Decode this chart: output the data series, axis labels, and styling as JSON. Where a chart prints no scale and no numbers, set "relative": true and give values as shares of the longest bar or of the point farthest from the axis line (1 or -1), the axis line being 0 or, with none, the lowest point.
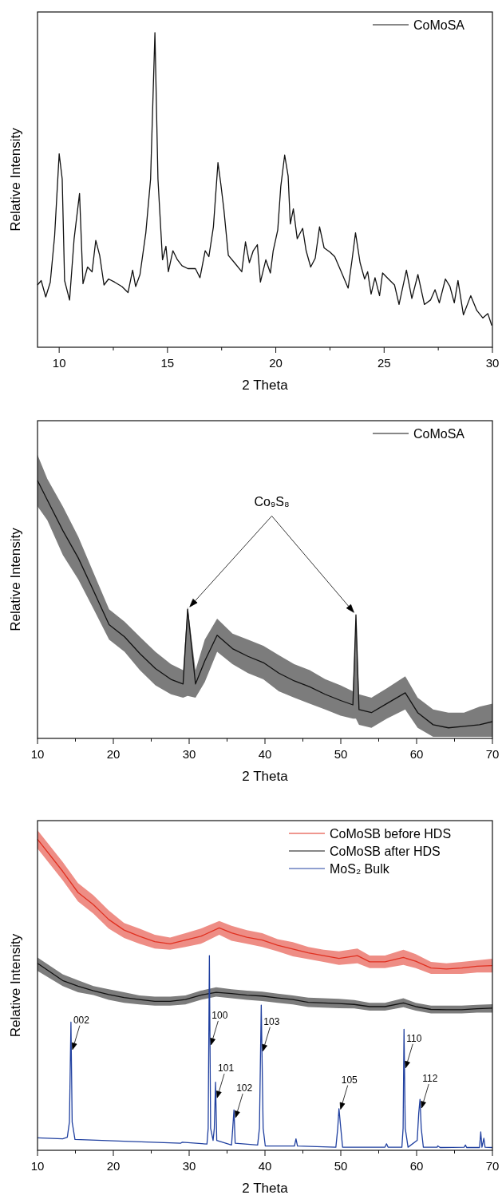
{
  "chart_data": [
    {
      "type": "line",
      "relative": true,
      "xlabel": "2 Theta",
      "ylabel": "Relative Intensity",
      "xlim": [
        9,
        30
      ],
      "xticks": [
        10,
        {
          "value": 12.5,
          "label": null
        },
        15,
        {
          "value": 17.5,
          "label": null
        },
        20,
        {
          "value": 22.5,
          "label": null
        },
        25,
        {
          "value": 27.5,
          "label": null
        },
        30
      ],
      "tick_labels": "x",
      "grid": false,
      "legend": "top right",
      "series": [
        {
          "name": "CoMoSA",
          "color": "#111111",
          "x": [
            9.0,
            9.17,
            9.38,
            9.59,
            9.79,
            10.0,
            10.14,
            10.25,
            10.48,
            10.69,
            10.94,
            11.1,
            11.31,
            11.52,
            11.69,
            11.87,
            12.07,
            12.28,
            12.56,
            12.9,
            13.18,
            13.39,
            13.53,
            13.73,
            14.0,
            14.22,
            14.42,
            14.56,
            14.77,
            14.93,
            15.04,
            15.25,
            15.46,
            15.67,
            15.94,
            16.29,
            16.5,
            16.74,
            16.91,
            17.12,
            17.33,
            17.46,
            17.6,
            17.81,
            18.09,
            18.43,
            18.6,
            18.78,
            18.96,
            19.15,
            19.29,
            19.54,
            19.75,
            19.88,
            20.09,
            20.23,
            20.41,
            20.57,
            20.67,
            20.81,
            20.99,
            21.24,
            21.4,
            21.61,
            21.82,
            22.02,
            22.23,
            22.51,
            22.72,
            22.99,
            23.34,
            23.52,
            23.68,
            23.89,
            24.1,
            24.24,
            24.4,
            24.58,
            24.79,
            24.93,
            25.2,
            25.48,
            25.69,
            26.03,
            26.28,
            26.56,
            26.86,
            27.14,
            27.35,
            27.55,
            27.83,
            28.04,
            28.24,
            28.41,
            28.66,
            29.0,
            29.28,
            29.56,
            29.79,
            29.97
          ],
          "values": [
            0.198,
            0.212,
            0.16,
            0.207,
            0.354,
            0.615,
            0.535,
            0.212,
            0.15,
            0.345,
            0.489,
            0.202,
            0.255,
            0.24,
            0.34,
            0.292,
            0.198,
            0.217,
            0.207,
            0.193,
            0.174,
            0.245,
            0.193,
            0.231,
            0.364,
            0.535,
            1.0,
            0.535,
            0.278,
            0.321,
            0.24,
            0.307,
            0.278,
            0.259,
            0.25,
            0.25,
            0.221,
            0.307,
            0.288,
            0.383,
            0.587,
            0.52,
            0.44,
            0.292,
            0.269,
            0.24,
            0.335,
            0.269,
            0.307,
            0.326,
            0.207,
            0.278,
            0.236,
            0.307,
            0.373,
            0.511,
            0.611,
            0.544,
            0.392,
            0.44,
            0.345,
            0.378,
            0.307,
            0.255,
            0.283,
            0.383,
            0.316,
            0.302,
            0.288,
            0.245,
            0.188,
            0.278,
            0.364,
            0.269,
            0.217,
            0.24,
            0.169,
            0.221,
            0.164,
            0.236,
            0.217,
            0.198,
            0.136,
            0.245,
            0.155,
            0.231,
            0.136,
            0.15,
            0.183,
            0.141,
            0.217,
            0.193,
            0.141,
            0.212,
            0.103,
            0.164,
            0.117,
            0.093,
            0.107,
            0.069
          ]
        }
      ]
    },
    {
      "type": "line",
      "relative": true,
      "xlabel": "2 Theta",
      "ylabel": "Relative Intensity",
      "xlim": [
        10,
        70
      ],
      "xticks": [
        10,
        {
          "value": 15,
          "label": null
        },
        20,
        {
          "value": 25,
          "label": null
        },
        30,
        {
          "value": 35,
          "label": null
        },
        40,
        {
          "value": 45,
          "label": null
        },
        50,
        {
          "value": 55,
          "label": null
        },
        60,
        {
          "value": 65,
          "label": null
        },
        70
      ],
      "tick_labels": "x",
      "grid": false,
      "legend": "top right",
      "annotations": [
        "Co₉S₈"
      ],
      "series": [
        {
          "name": "CoMoSA",
          "color": "#111111",
          "x": [
            10.0,
            11.3,
            13.34,
            15.37,
            17.41,
            19.44,
            21.48,
            23.5,
            25.55,
            27.6,
            29.2,
            29.8,
            30.84,
            32.06,
            33.69,
            35.72,
            37.76,
            39.79,
            41.83,
            43.86,
            45.9,
            47.93,
            49.97,
            51.6,
            52.0,
            52.4,
            54.04,
            56.07,
            58.5,
            60.14,
            62.18,
            64.2,
            66.25,
            68.3,
            70.0
          ],
          "values": [
            1.0,
            0.924,
            0.806,
            0.7,
            0.571,
            0.441,
            0.394,
            0.329,
            0.271,
            0.229,
            0.211,
            0.501,
            0.211,
            0.3,
            0.4,
            0.348,
            0.318,
            0.294,
            0.253,
            0.223,
            0.2,
            0.171,
            0.147,
            0.13,
            0.479,
            0.112,
            0.1,
            0.135,
            0.177,
            0.1,
            0.053,
            0.041,
            0.047,
            0.053,
            0.065
          ],
          "lower": [
            0.9,
            0.846,
            0.711,
            0.617,
            0.501,
            0.383,
            0.336,
            0.265,
            0.206,
            0.171,
            0.158,
            0.165,
            0.158,
            0.218,
            0.336,
            0.288,
            0.253,
            0.229,
            0.183,
            0.158,
            0.135,
            0.112,
            0.088,
            0.077,
            0.077,
            0.053,
            0.041,
            0.077,
            0.112,
            0.041,
            0.006,
            0.006,
            0.006,
            0.006,
            0.006
          ],
          "upper": [
            1.1,
            1.006,
            0.899,
            0.782,
            0.641,
            0.501,
            0.453,
            0.394,
            0.336,
            0.288,
            0.265,
            0.512,
            0.265,
            0.383,
            0.464,
            0.406,
            0.383,
            0.359,
            0.323,
            0.288,
            0.265,
            0.23,
            0.206,
            0.183,
            0.479,
            0.171,
            0.158,
            0.194,
            0.241,
            0.158,
            0.112,
            0.1,
            0.1,
            0.123,
            0.135
          ]
        }
      ]
    },
    {
      "type": "line",
      "relative": true,
      "xlabel": "2 Theta",
      "ylabel": "Relative Intensity",
      "xlim": [
        10,
        70
      ],
      "xticks": [
        10,
        {
          "value": 15,
          "label": null
        },
        20,
        {
          "value": 25,
          "label": null
        },
        30,
        {
          "value": 35,
          "label": null
        },
        40,
        {
          "value": 45,
          "label": null
        },
        50,
        {
          "value": 55,
          "label": null
        },
        60,
        {
          "value": 65,
          "label": null
        },
        70
      ],
      "tick_labels": "x",
      "grid": false,
      "legend": "top right",
      "annotations": [
        {
          "text": "002",
          "x": 14.41,
          "y": 0.324
        },
        {
          "text": "100",
          "x": 32.67,
          "y": 0.339
        },
        {
          "text": "101",
          "x": 33.48,
          "y": 0.169
        },
        {
          "text": "102",
          "x": 35.91,
          "y": 0.105
        },
        {
          "text": "103",
          "x": 39.51,
          "y": 0.319
        },
        {
          "text": "105",
          "x": 49.76,
          "y": 0.132
        },
        {
          "text": "110",
          "x": 58.34,
          "y": 0.265
        },
        {
          "text": "112",
          "x": 60.45,
          "y": 0.136
        }
      ],
      "series": [
        {
          "name": "CoMoSB before HDS",
          "color": "#e03020",
          "x": [
            10,
            13.32,
            15.34,
            17.37,
            19.39,
            21.42,
            23.44,
            25.47,
            27.49,
            29.51,
            31.54,
            33.97,
            35.59,
            37.61,
            39.64,
            41.66,
            43.68,
            45.71,
            47.73,
            49.76,
            52.19,
            53.81,
            55.83,
            58.26,
            59.88,
            61.9,
            63.93,
            65.95,
            67.98,
            70
          ],
          "values": [
            1.0,
            0.897,
            0.829,
            0.79,
            0.742,
            0.708,
            0.688,
            0.671,
            0.664,
            0.676,
            0.688,
            0.715,
            0.699,
            0.685,
            0.676,
            0.659,
            0.647,
            0.635,
            0.626,
            0.617,
            0.626,
            0.606,
            0.606,
            0.62,
            0.608,
            0.586,
            0.583,
            0.586,
            0.592,
            0.594
          ],
          "lower": [
            0.97,
            0.868,
            0.8,
            0.761,
            0.713,
            0.683,
            0.664,
            0.649,
            0.645,
            0.654,
            0.664,
            0.693,
            0.674,
            0.664,
            0.654,
            0.64,
            0.624,
            0.615,
            0.606,
            0.596,
            0.601,
            0.586,
            0.586,
            0.596,
            0.586,
            0.567,
            0.567,
            0.567,
            0.572,
            0.572
          ],
          "upper": [
            1.029,
            0.927,
            0.859,
            0.82,
            0.771,
            0.731,
            0.713,
            0.693,
            0.684,
            0.698,
            0.713,
            0.737,
            0.722,
            0.708,
            0.698,
            0.679,
            0.669,
            0.654,
            0.645,
            0.64,
            0.649,
            0.626,
            0.626,
            0.645,
            0.631,
            0.606,
            0.601,
            0.606,
            0.611,
            0.616
          ]
        },
        {
          "name": "CoMoSB after HDS",
          "color": "#111111",
          "x": [
            10,
            13.32,
            15.34,
            17.37,
            19.39,
            21.42,
            23.44,
            25.47,
            27.49,
            29.51,
            31.54,
            33.56,
            35.59,
            37.61,
            39.64,
            41.66,
            43.68,
            45.71,
            47.73,
            49.76,
            51.78,
            53.81,
            55.83,
            58.26,
            59.88,
            61.9,
            63.93,
            65.95,
            67.98,
            70
          ],
          "values": [
            0.601,
            0.546,
            0.528,
            0.513,
            0.501,
            0.491,
            0.485,
            0.479,
            0.479,
            0.485,
            0.499,
            0.508,
            0.504,
            0.499,
            0.496,
            0.49,
            0.485,
            0.476,
            0.474,
            0.472,
            0.469,
            0.462,
            0.462,
            0.474,
            0.462,
            0.453,
            0.452,
            0.452,
            0.455,
            0.457
          ],
          "lower": [
            0.577,
            0.528,
            0.508,
            0.499,
            0.484,
            0.474,
            0.469,
            0.465,
            0.465,
            0.469,
            0.484,
            0.494,
            0.489,
            0.484,
            0.48,
            0.474,
            0.469,
            0.461,
            0.459,
            0.457,
            0.456,
            0.449,
            0.449,
            0.46,
            0.449,
            0.44,
            0.44,
            0.44,
            0.443,
            0.443
          ],
          "upper": [
            0.62,
            0.566,
            0.547,
            0.528,
            0.518,
            0.508,
            0.498,
            0.494,
            0.494,
            0.498,
            0.513,
            0.524,
            0.518,
            0.513,
            0.51,
            0.504,
            0.498,
            0.491,
            0.489,
            0.487,
            0.483,
            0.474,
            0.474,
            0.489,
            0.474,
            0.465,
            0.465,
            0.465,
            0.468,
            0.47
          ]
        },
        {
          "name": "MoS₂ Bulk",
          "color": "#2040a0",
          "x": [
            10,
            13.32,
            13.93,
            14.21,
            14.41,
            14.57,
            14.94,
            21.42,
            28.9,
            29.1,
            32.35,
            32.51,
            32.67,
            32.83,
            33.16,
            33.32,
            33.48,
            33.64,
            35.59,
            35.75,
            35.91,
            36.07,
            39.03,
            39.27,
            39.51,
            39.76,
            40.04,
            43.89,
            44.09,
            44.29,
            49.35,
            49.6,
            49.76,
            50.0,
            50.24,
            55.83,
            56.03,
            56.23,
            58.06,
            58.22,
            58.34,
            58.5,
            58.87,
            60.08,
            60.28,
            60.45,
            60.61,
            60.89,
            62.71,
            62.79,
            63.1,
            66.28,
            66.44,
            66.6,
            68.3,
            68.46,
            68.62,
            68.87,
            69.03,
            70
          ],
          "values": [
            0.04,
            0.037,
            0.042,
            0.091,
            0.412,
            0.091,
            0.035,
            0.029,
            0.023,
            0.026,
            0.02,
            0.071,
            0.626,
            0.071,
            0.032,
            0.071,
            0.219,
            0.032,
            0.017,
            0.071,
            0.13,
            0.023,
            0.017,
            0.071,
            0.467,
            0.071,
            0.014,
            0.014,
            0.037,
            0.014,
            0.01,
            0.071,
            0.134,
            0.071,
            0.01,
            0.01,
            0.021,
            0.01,
            0.01,
            0.071,
            0.389,
            0.071,
            0.01,
            0.032,
            0.119,
            0.164,
            0.071,
            0.01,
            0.01,
            0.014,
            0.009,
            0.01,
            0.017,
            0.009,
            0.009,
            0.059,
            0.01,
            0.039,
            0.01,
            0.009
          ]
        }
      ]
    }
  ]
}
